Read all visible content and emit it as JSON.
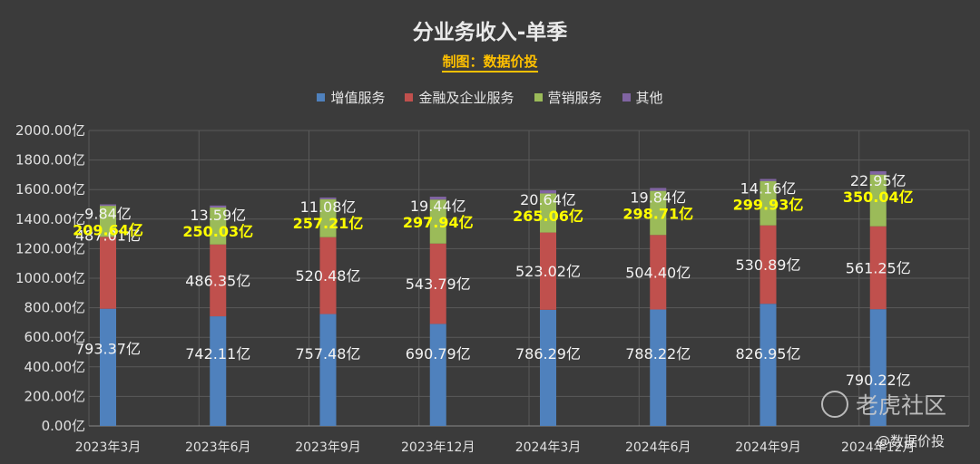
{
  "chart_data": {
    "type": "bar",
    "stacked": true,
    "title": "分业务收入-单季",
    "subtitle": "制图：数据价投",
    "categories": [
      "2023年3月",
      "2023年6月",
      "2023年9月",
      "2023年12月",
      "2024年3月",
      "2024年6月",
      "2024年9月",
      "2024年12月"
    ],
    "yticks": [
      "0.00亿",
      "200.00亿",
      "400.00亿",
      "600.00亿",
      "800.00亿",
      "1000.00亿",
      "1200.00亿",
      "1400.00亿",
      "1600.00亿",
      "1800.00亿",
      "2000.00亿"
    ],
    "ylim": [
      0,
      2000
    ],
    "grid": true,
    "legend_position": "top",
    "series": [
      {
        "name": "增值服务",
        "color": "#4f81bd",
        "label_color": "#f2f2f2",
        "values": [
          793.37,
          742.11,
          757.48,
          690.79,
          786.29,
          788.22,
          826.95,
          790.22
        ],
        "labels": [
          "793.37亿",
          "742.11亿",
          "757.48亿",
          "690.79亿",
          "786.29亿",
          "788.22亿",
          "826.95亿",
          "790.22亿"
        ]
      },
      {
        "name": "金融及企业服务",
        "color": "#c0504d",
        "label_color": "#f2f2f2",
        "values": [
          487.01,
          486.35,
          520.48,
          543.79,
          523.02,
          504.4,
          530.89,
          561.25
        ],
        "labels": [
          "487.01亿",
          "486.35亿",
          "520.48亿",
          "543.79亿",
          "523.02亿",
          "504.40亿",
          "530.89亿",
          "561.25亿"
        ]
      },
      {
        "name": "营销服务",
        "color": "#9bbb59",
        "label_color": "#ffff00",
        "values": [
          209.64,
          250.03,
          257.21,
          297.94,
          265.06,
          298.71,
          299.93,
          350.04
        ],
        "labels": [
          "209.64亿",
          "250.03亿",
          "257.21亿",
          "297.94亿",
          "265.06亿",
          "298.71亿",
          "299.93亿",
          "350.04亿"
        ]
      },
      {
        "name": "其他",
        "color": "#8064a2",
        "label_color": "#f2f2f2",
        "values": [
          9.84,
          13.59,
          11.08,
          19.44,
          20.64,
          19.84,
          14.16,
          22.95
        ],
        "labels": [
          "9.84亿",
          "13.59亿",
          "11.08亿",
          "19.44亿",
          "20.64亿",
          "19.84亿",
          "14.16亿",
          "22.95亿"
        ]
      }
    ]
  },
  "watermark": {
    "text": "老虎社区"
  },
  "credit": {
    "text": "@数据价投"
  }
}
